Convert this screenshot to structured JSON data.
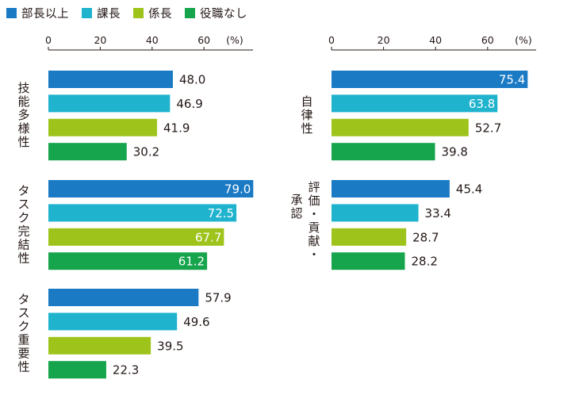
{
  "legend": [
    {
      "label": "部長以上",
      "color": "#1a7ac4"
    },
    {
      "label": "課長",
      "color": "#1fb3ce"
    },
    {
      "label": "係長",
      "color": "#9ec41c"
    },
    {
      "label": "役職なし",
      "color": "#16a44c"
    }
  ],
  "chart_data": [
    {
      "type": "bar",
      "orientation": "horizontal",
      "unit_label": "(%)",
      "xlim": [
        0,
        79
      ],
      "ticks": [
        "0",
        "20",
        "40",
        "60"
      ],
      "groups": [
        {
          "label": "技能多様性",
          "values": [
            48.0,
            46.9,
            41.9,
            30.2
          ],
          "value_labels": [
            "48.0",
            "46.9",
            "41.9",
            "30.2"
          ]
        },
        {
          "label": "タスク完結性",
          "values": [
            79.0,
            72.5,
            67.7,
            61.2
          ],
          "value_labels": [
            "79.0",
            "72.5",
            "67.7",
            "61.2"
          ]
        },
        {
          "label": "タスク重要性",
          "values": [
            57.9,
            49.6,
            39.5,
            22.3
          ],
          "value_labels": [
            "57.9",
            "49.6",
            "39.5",
            "22.3"
          ]
        }
      ]
    },
    {
      "type": "bar",
      "orientation": "horizontal",
      "unit_label": "(%)",
      "xlim": [
        0,
        79
      ],
      "ticks": [
        "0",
        "20",
        "40",
        "60"
      ],
      "groups": [
        {
          "label": "自律性",
          "values": [
            75.4,
            63.8,
            52.7,
            39.8
          ],
          "value_labels": [
            "75.4",
            "63.8",
            "52.7",
            "39.8"
          ]
        },
        {
          "label": "評価・貢献・承認",
          "values": [
            45.4,
            33.4,
            28.7,
            28.2
          ],
          "value_labels": [
            "45.4",
            "33.4",
            "28.7",
            "28.2"
          ]
        }
      ]
    }
  ]
}
